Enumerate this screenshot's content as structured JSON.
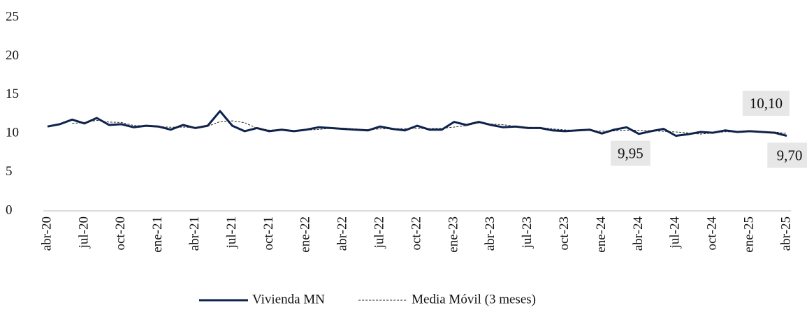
{
  "chart_data": {
    "type": "line",
    "categories": [
      "abr-20",
      null,
      null,
      "jul-20",
      null,
      null,
      "oct-20",
      null,
      null,
      "ene-21",
      null,
      null,
      "abr-21",
      null,
      null,
      "jul-21",
      null,
      null,
      "oct-21",
      null,
      null,
      "ene-22",
      null,
      null,
      "abr-22",
      null,
      null,
      "jul-22",
      null,
      null,
      "oct-22",
      null,
      null,
      "ene-23",
      null,
      null,
      "abr-23",
      null,
      null,
      "jul-23",
      null,
      null,
      "oct-23",
      null,
      null,
      "ene-24",
      null,
      null,
      "abr-24",
      null,
      null,
      "jul-24",
      null,
      null,
      "oct-24",
      null,
      null,
      "ene-25",
      null,
      null,
      "abr-25"
    ],
    "series": [
      {
        "name": "Vivienda MN",
        "color": "#0d2350",
        "values": [
          10.9,
          11.2,
          11.8,
          11.3,
          12.0,
          11.1,
          11.2,
          10.8,
          11.0,
          10.9,
          10.5,
          11.1,
          10.7,
          11.0,
          12.9,
          11.0,
          10.3,
          10.7,
          10.3,
          10.5,
          10.3,
          10.5,
          10.8,
          10.7,
          10.6,
          10.5,
          10.4,
          10.9,
          10.6,
          10.4,
          11.0,
          10.5,
          10.5,
          11.5,
          11.1,
          11.5,
          11.1,
          10.8,
          10.9,
          10.7,
          10.7,
          10.4,
          10.3,
          10.4,
          10.5,
          10.0,
          10.5,
          10.8,
          9.95,
          10.3,
          10.6,
          9.7,
          9.9,
          10.2,
          10.1,
          10.4,
          10.2,
          10.3,
          10.2,
          10.1,
          9.7
        ],
        "value_labels": [
          null,
          null,
          null,
          null,
          null,
          null,
          null,
          null,
          null,
          null,
          null,
          null,
          null,
          null,
          null,
          null,
          null,
          null,
          null,
          null,
          null,
          null,
          null,
          null,
          null,
          null,
          null,
          null,
          null,
          null,
          null,
          null,
          null,
          null,
          null,
          null,
          null,
          null,
          null,
          null,
          null,
          null,
          null,
          null,
          null,
          null,
          null,
          null,
          "9,95",
          null,
          null,
          null,
          null,
          null,
          null,
          null,
          null,
          null,
          null,
          "10,10",
          "9,70"
        ]
      },
      {
        "name": "Media Móvil (3 meses)",
        "color": "#222222",
        "dashed": true,
        "values": [
          null,
          null,
          11.3,
          11.43,
          11.7,
          11.47,
          11.43,
          11.03,
          11.0,
          10.9,
          10.8,
          10.83,
          10.77,
          10.93,
          11.53,
          11.63,
          11.4,
          10.67,
          10.43,
          10.5,
          10.37,
          10.43,
          10.53,
          10.67,
          10.7,
          10.6,
          10.5,
          10.6,
          10.63,
          10.63,
          10.67,
          10.63,
          10.67,
          10.83,
          11.03,
          11.37,
          11.23,
          11.13,
          10.93,
          10.8,
          10.77,
          10.6,
          10.47,
          10.37,
          10.4,
          10.3,
          10.33,
          10.43,
          10.42,
          10.35,
          10.28,
          10.2,
          10.07,
          9.93,
          10.07,
          10.23,
          10.23,
          10.3,
          10.23,
          10.2,
          10.0
        ]
      }
    ],
    "ylim": [
      0,
      25
    ],
    "yticks": [
      0,
      5,
      10,
      15,
      20,
      25
    ],
    "grid": false,
    "legend": "bottom"
  }
}
